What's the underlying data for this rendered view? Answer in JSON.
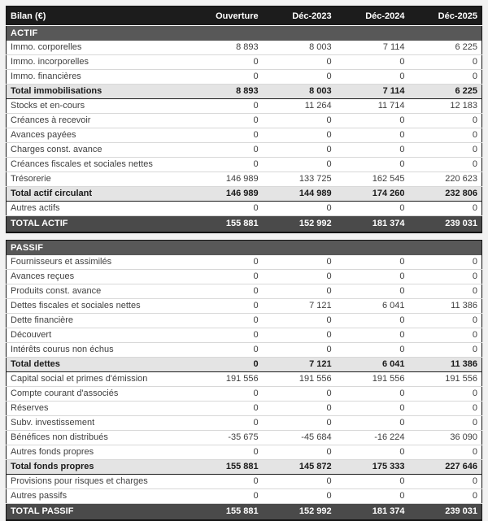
{
  "table": {
    "header": {
      "label": "Bilan (€)",
      "columns": [
        "Ouverture",
        "Déc-2023",
        "Déc-2024",
        "Déc-2025"
      ]
    },
    "sections": [
      {
        "label": "ACTIF",
        "rows": [
          {
            "label": "Immo. corporelles",
            "values": [
              "8 893",
              "8 003",
              "7 114",
              "6 225"
            ],
            "type": "data"
          },
          {
            "label": "Immo. incorporelles",
            "values": [
              "0",
              "0",
              "0",
              "0"
            ],
            "type": "data"
          },
          {
            "label": "Immo. financières",
            "values": [
              "0",
              "0",
              "0",
              "0"
            ],
            "type": "data"
          },
          {
            "label": "Total immobilisations",
            "values": [
              "8 893",
              "8 003",
              "7 114",
              "6 225"
            ],
            "type": "subtotal"
          },
          {
            "label": "Stocks et en-cours",
            "values": [
              "0",
              "11 264",
              "11 714",
              "12 183"
            ],
            "type": "data"
          },
          {
            "label": "Créances à recevoir",
            "values": [
              "0",
              "0",
              "0",
              "0"
            ],
            "type": "data"
          },
          {
            "label": "Avances payées",
            "values": [
              "0",
              "0",
              "0",
              "0"
            ],
            "type": "data"
          },
          {
            "label": "Charges const. avance",
            "values": [
              "0",
              "0",
              "0",
              "0"
            ],
            "type": "data"
          },
          {
            "label": "Créances fiscales et sociales nettes",
            "values": [
              "0",
              "0",
              "0",
              "0"
            ],
            "type": "data"
          },
          {
            "label": "Trésorerie",
            "values": [
              "146 989",
              "133 725",
              "162 545",
              "220 623"
            ],
            "type": "data"
          },
          {
            "label": "Total actif circulant",
            "values": [
              "146 989",
              "144 989",
              "174 260",
              "232 806"
            ],
            "type": "subtotal"
          },
          {
            "label": "Autres actifs",
            "values": [
              "0",
              "0",
              "0",
              "0"
            ],
            "type": "data"
          }
        ],
        "total": {
          "label": "TOTAL ACTIF",
          "values": [
            "155 881",
            "152 992",
            "181 374",
            "239 031"
          ]
        }
      },
      {
        "label": "PASSIF",
        "rows": [
          {
            "label": "Fournisseurs et assimilés",
            "values": [
              "0",
              "0",
              "0",
              "0"
            ],
            "type": "data"
          },
          {
            "label": "Avances reçues",
            "values": [
              "0",
              "0",
              "0",
              "0"
            ],
            "type": "data"
          },
          {
            "label": "Produits const. avance",
            "values": [
              "0",
              "0",
              "0",
              "0"
            ],
            "type": "data"
          },
          {
            "label": "Dettes fiscales et sociales nettes",
            "values": [
              "0",
              "7 121",
              "6 041",
              "11 386"
            ],
            "type": "data"
          },
          {
            "label": "Dette financière",
            "values": [
              "0",
              "0",
              "0",
              "0"
            ],
            "type": "data"
          },
          {
            "label": "Découvert",
            "values": [
              "0",
              "0",
              "0",
              "0"
            ],
            "type": "data"
          },
          {
            "label": "Intérêts courus non échus",
            "values": [
              "0",
              "0",
              "0",
              "0"
            ],
            "type": "data"
          },
          {
            "label": "Total dettes",
            "values": [
              "0",
              "7 121",
              "6 041",
              "11 386"
            ],
            "type": "subtotal"
          },
          {
            "label": "Capital social et primes d'émission",
            "values": [
              "191 556",
              "191 556",
              "191 556",
              "191 556"
            ],
            "type": "data"
          },
          {
            "label": "Compte courant d'associés",
            "values": [
              "0",
              "0",
              "0",
              "0"
            ],
            "type": "data"
          },
          {
            "label": "Réserves",
            "values": [
              "0",
              "0",
              "0",
              "0"
            ],
            "type": "data"
          },
          {
            "label": "Subv. investissement",
            "values": [
              "0",
              "0",
              "0",
              "0"
            ],
            "type": "data"
          },
          {
            "label": "Bénéfices non distribués",
            "values": [
              "-35 675",
              "-45 684",
              "-16 224",
              "36 090"
            ],
            "type": "data"
          },
          {
            "label": "Autres fonds propres",
            "values": [
              "0",
              "0",
              "0",
              "0"
            ],
            "type": "data"
          },
          {
            "label": "Total fonds propres",
            "values": [
              "155 881",
              "145 872",
              "175 333",
              "227 646"
            ],
            "type": "subtotal"
          },
          {
            "label": "Provisions pour risques et charges",
            "values": [
              "0",
              "0",
              "0",
              "0"
            ],
            "type": "data"
          },
          {
            "label": "Autres passifs",
            "values": [
              "0",
              "0",
              "0",
              "0"
            ],
            "type": "data"
          }
        ],
        "total": {
          "label": "TOTAL PASSIF",
          "values": [
            "155 881",
            "152 992",
            "181 374",
            "239 031"
          ]
        }
      }
    ],
    "colors": {
      "header_bg": "#1c1c1c",
      "section_bar_bg": "#585858",
      "grand_total_bg": "#4a4a4a",
      "subtotal_bg": "#e4e4e4",
      "row_divider": "#d8d8d8",
      "page_bg": "#f2f2f2",
      "text_dark": "#3f3f3f"
    }
  }
}
